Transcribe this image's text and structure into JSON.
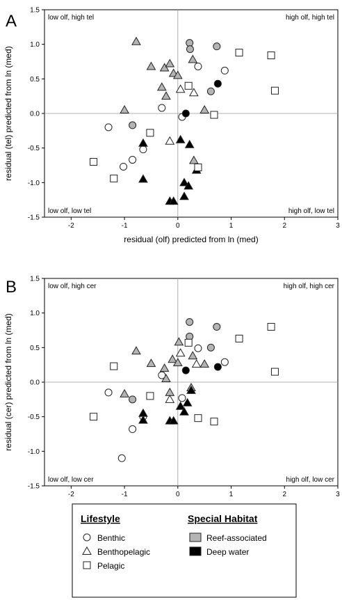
{
  "chart_data": [
    {
      "panel": "A",
      "type": "scatter",
      "xlabel": "residual (olf) predicted from ln (med)",
      "ylabel": "residual (tel) predicted from ln (med)",
      "xlim": [
        -2.5,
        3
      ],
      "ylim": [
        -1.5,
        1.5
      ],
      "xticks": [
        -2,
        -1,
        0,
        1,
        2,
        3
      ],
      "yticks": [
        -1.5,
        -1.0,
        -0.5,
        0.0,
        0.5,
        1.0,
        1.5
      ],
      "ytick_labels": [
        "-1.5",
        "-1.0",
        "-0.5",
        "0.0",
        "0.5",
        "1.0",
        "1.5"
      ],
      "reference_lines": {
        "x": 0,
        "y": 0
      },
      "corner_labels": {
        "top_left": "low olf, high tel",
        "top_right": "high olf, high tel",
        "bottom_left": "low olf, low tel",
        "bottom_right": "high olf, low tel"
      },
      "points": [
        {
          "x": 0.22,
          "y": 1.02,
          "shape": "circle",
          "fill": "reef"
        },
        {
          "x": 0.23,
          "y": 0.93,
          "shape": "circle",
          "fill": "reef"
        },
        {
          "x": 0.73,
          "y": 0.97,
          "shape": "circle",
          "fill": "reef"
        },
        {
          "x": 0.62,
          "y": 0.32,
          "shape": "circle",
          "fill": "reef"
        },
        {
          "x": -0.85,
          "y": -0.17,
          "shape": "circle",
          "fill": "reef"
        },
        {
          "x": 0.38,
          "y": 0.68,
          "shape": "circle",
          "fill": "none"
        },
        {
          "x": 0.88,
          "y": 0.62,
          "shape": "circle",
          "fill": "none"
        },
        {
          "x": -0.3,
          "y": 0.08,
          "shape": "circle",
          "fill": "none"
        },
        {
          "x": 0.08,
          "y": -0.05,
          "shape": "circle",
          "fill": "none"
        },
        {
          "x": -1.3,
          "y": -0.2,
          "shape": "circle",
          "fill": "none"
        },
        {
          "x": -0.65,
          "y": -0.52,
          "shape": "circle",
          "fill": "none"
        },
        {
          "x": -0.85,
          "y": -0.67,
          "shape": "circle",
          "fill": "none"
        },
        {
          "x": -1.02,
          "y": -0.77,
          "shape": "circle",
          "fill": "none"
        },
        {
          "x": 0.75,
          "y": 0.43,
          "shape": "circle",
          "fill": "deep"
        },
        {
          "x": 0.15,
          "y": 0.0,
          "shape": "circle",
          "fill": "deep"
        },
        {
          "x": -0.78,
          "y": 1.04,
          "shape": "triangle",
          "fill": "reef"
        },
        {
          "x": -0.5,
          "y": 0.68,
          "shape": "triangle",
          "fill": "reef"
        },
        {
          "x": -0.25,
          "y": 0.66,
          "shape": "triangle",
          "fill": "reef"
        },
        {
          "x": -0.15,
          "y": 0.72,
          "shape": "triangle",
          "fill": "reef"
        },
        {
          "x": -0.08,
          "y": 0.58,
          "shape": "triangle",
          "fill": "reef"
        },
        {
          "x": 0.0,
          "y": 0.55,
          "shape": "triangle",
          "fill": "reef"
        },
        {
          "x": 0.28,
          "y": 0.78,
          "shape": "triangle",
          "fill": "reef"
        },
        {
          "x": -0.3,
          "y": 0.38,
          "shape": "triangle",
          "fill": "reef"
        },
        {
          "x": -0.22,
          "y": 0.25,
          "shape": "triangle",
          "fill": "reef"
        },
        {
          "x": -1.0,
          "y": 0.05,
          "shape": "triangle",
          "fill": "reef"
        },
        {
          "x": 0.5,
          "y": 0.05,
          "shape": "triangle",
          "fill": "reef"
        },
        {
          "x": 0.3,
          "y": -0.68,
          "shape": "triangle",
          "fill": "reef"
        },
        {
          "x": 0.05,
          "y": 0.35,
          "shape": "triangle",
          "fill": "none"
        },
        {
          "x": 0.3,
          "y": 0.3,
          "shape": "triangle",
          "fill": "none"
        },
        {
          "x": -0.15,
          "y": -0.4,
          "shape": "triangle",
          "fill": "none"
        },
        {
          "x": -0.65,
          "y": -0.43,
          "shape": "triangle",
          "fill": "deep"
        },
        {
          "x": 0.05,
          "y": -0.38,
          "shape": "triangle",
          "fill": "deep"
        },
        {
          "x": 0.22,
          "y": -0.45,
          "shape": "triangle",
          "fill": "deep"
        },
        {
          "x": -0.65,
          "y": -0.95,
          "shape": "triangle",
          "fill": "deep"
        },
        {
          "x": 0.12,
          "y": -1.0,
          "shape": "triangle",
          "fill": "deep"
        },
        {
          "x": 0.2,
          "y": -1.05,
          "shape": "triangle",
          "fill": "deep"
        },
        {
          "x": 0.35,
          "y": -0.82,
          "shape": "triangle",
          "fill": "deep"
        },
        {
          "x": 0.12,
          "y": -1.2,
          "shape": "triangle",
          "fill": "deep"
        },
        {
          "x": -0.15,
          "y": -1.27,
          "shape": "triangle",
          "fill": "deep"
        },
        {
          "x": -0.08,
          "y": -1.27,
          "shape": "triangle",
          "fill": "deep"
        },
        {
          "x": 0.2,
          "y": 0.4,
          "shape": "square",
          "fill": "none"
        },
        {
          "x": 1.15,
          "y": 0.88,
          "shape": "square",
          "fill": "none"
        },
        {
          "x": 1.75,
          "y": 0.84,
          "shape": "square",
          "fill": "none"
        },
        {
          "x": 1.82,
          "y": 0.33,
          "shape": "square",
          "fill": "none"
        },
        {
          "x": 0.68,
          "y": -0.02,
          "shape": "square",
          "fill": "none"
        },
        {
          "x": -0.52,
          "y": -0.28,
          "shape": "square",
          "fill": "none"
        },
        {
          "x": -1.58,
          "y": -0.7,
          "shape": "square",
          "fill": "none"
        },
        {
          "x": -1.2,
          "y": -0.94,
          "shape": "square",
          "fill": "none"
        },
        {
          "x": 0.38,
          "y": -0.78,
          "shape": "square",
          "fill": "none"
        }
      ]
    },
    {
      "panel": "B",
      "type": "scatter",
      "xlabel": "residual (olf) predicted from ln (med)",
      "ylabel": "residual (cer) predicted from ln (med)",
      "xlim": [
        -2.5,
        3
      ],
      "ylim": [
        -1.5,
        1.5
      ],
      "xticks": [
        -2,
        -1,
        0,
        1,
        2,
        3
      ],
      "yticks": [
        -1.5,
        -1.0,
        -0.5,
        0.0,
        0.5,
        1.0,
        1.5
      ],
      "ytick_labels": [
        "-1.5",
        "-1.0",
        "-0.5",
        "0.0",
        "0.5",
        "1.0",
        "1.5"
      ],
      "reference_lines": {
        "x": 0,
        "y": 0
      },
      "corner_labels": {
        "top_left": "low olf, high cer",
        "top_right": "high olf, high cer",
        "bottom_left": "low olf, low cer",
        "bottom_right": "high olf, low cer"
      },
      "points": [
        {
          "x": 0.22,
          "y": 0.87,
          "shape": "circle",
          "fill": "reef"
        },
        {
          "x": 0.22,
          "y": 0.66,
          "shape": "circle",
          "fill": "reef"
        },
        {
          "x": 0.73,
          "y": 0.8,
          "shape": "circle",
          "fill": "reef"
        },
        {
          "x": 0.62,
          "y": 0.5,
          "shape": "circle",
          "fill": "reef"
        },
        {
          "x": -0.85,
          "y": -0.25,
          "shape": "circle",
          "fill": "reef"
        },
        {
          "x": 0.38,
          "y": 0.49,
          "shape": "circle",
          "fill": "none"
        },
        {
          "x": 0.88,
          "y": 0.29,
          "shape": "circle",
          "fill": "none"
        },
        {
          "x": -0.3,
          "y": 0.1,
          "shape": "circle",
          "fill": "none"
        },
        {
          "x": 0.08,
          "y": -0.23,
          "shape": "circle",
          "fill": "none"
        },
        {
          "x": -1.3,
          "y": -0.15,
          "shape": "circle",
          "fill": "none"
        },
        {
          "x": -0.65,
          "y": -0.5,
          "shape": "circle",
          "fill": "none"
        },
        {
          "x": -0.85,
          "y": -0.68,
          "shape": "circle",
          "fill": "none"
        },
        {
          "x": -1.05,
          "y": -1.1,
          "shape": "circle",
          "fill": "none"
        },
        {
          "x": 0.75,
          "y": 0.22,
          "shape": "circle",
          "fill": "deep"
        },
        {
          "x": 0.15,
          "y": 0.17,
          "shape": "circle",
          "fill": "deep"
        },
        {
          "x": -0.78,
          "y": 0.45,
          "shape": "triangle",
          "fill": "reef"
        },
        {
          "x": -0.5,
          "y": 0.27,
          "shape": "triangle",
          "fill": "reef"
        },
        {
          "x": -0.25,
          "y": 0.2,
          "shape": "triangle",
          "fill": "reef"
        },
        {
          "x": -0.1,
          "y": 0.33,
          "shape": "triangle",
          "fill": "reef"
        },
        {
          "x": 0.02,
          "y": 0.58,
          "shape": "triangle",
          "fill": "reef"
        },
        {
          "x": 0.28,
          "y": 0.38,
          "shape": "triangle",
          "fill": "reef"
        },
        {
          "x": 0.5,
          "y": 0.26,
          "shape": "triangle",
          "fill": "reef"
        },
        {
          "x": 0.0,
          "y": 0.28,
          "shape": "triangle",
          "fill": "reef"
        },
        {
          "x": -0.22,
          "y": 0.05,
          "shape": "triangle",
          "fill": "reef"
        },
        {
          "x": -1.0,
          "y": -0.17,
          "shape": "triangle",
          "fill": "reef"
        },
        {
          "x": -0.15,
          "y": -0.15,
          "shape": "triangle",
          "fill": "reef"
        },
        {
          "x": 0.25,
          "y": -0.08,
          "shape": "triangle",
          "fill": "reef"
        },
        {
          "x": 0.05,
          "y": 0.42,
          "shape": "triangle",
          "fill": "none"
        },
        {
          "x": 0.35,
          "y": 0.26,
          "shape": "triangle",
          "fill": "none"
        },
        {
          "x": -0.15,
          "y": -0.25,
          "shape": "triangle",
          "fill": "none"
        },
        {
          "x": -0.65,
          "y": -0.45,
          "shape": "triangle",
          "fill": "deep"
        },
        {
          "x": -0.65,
          "y": -0.55,
          "shape": "triangle",
          "fill": "deep"
        },
        {
          "x": 0.05,
          "y": -0.35,
          "shape": "triangle",
          "fill": "deep"
        },
        {
          "x": 0.18,
          "y": -0.3,
          "shape": "triangle",
          "fill": "deep"
        },
        {
          "x": 0.25,
          "y": -0.12,
          "shape": "triangle",
          "fill": "deep"
        },
        {
          "x": 0.12,
          "y": -0.43,
          "shape": "triangle",
          "fill": "deep"
        },
        {
          "x": -0.15,
          "y": -0.56,
          "shape": "triangle",
          "fill": "deep"
        },
        {
          "x": -0.08,
          "y": -0.56,
          "shape": "triangle",
          "fill": "deep"
        },
        {
          "x": 0.2,
          "y": 0.57,
          "shape": "square",
          "fill": "none"
        },
        {
          "x": 1.15,
          "y": 0.63,
          "shape": "square",
          "fill": "none"
        },
        {
          "x": 1.75,
          "y": 0.8,
          "shape": "square",
          "fill": "none"
        },
        {
          "x": 1.82,
          "y": 0.15,
          "shape": "square",
          "fill": "none"
        },
        {
          "x": -1.2,
          "y": 0.23,
          "shape": "square",
          "fill": "none"
        },
        {
          "x": -0.52,
          "y": -0.2,
          "shape": "square",
          "fill": "none"
        },
        {
          "x": -1.58,
          "y": -0.5,
          "shape": "square",
          "fill": "none"
        },
        {
          "x": 0.38,
          "y": -0.52,
          "shape": "square",
          "fill": "none"
        },
        {
          "x": 0.68,
          "y": -0.57,
          "shape": "square",
          "fill": "none"
        }
      ]
    }
  ],
  "fills": {
    "none": "#ffffff",
    "reef": "#b4b4b4",
    "deep": "#000000"
  },
  "legend": {
    "lifestyle_title": "Lifestyle",
    "lifestyle_items": [
      {
        "label": "Benthic",
        "shape": "circle"
      },
      {
        "label": "Benthopelagic",
        "shape": "triangle"
      },
      {
        "label": "Pelagic",
        "shape": "square"
      }
    ],
    "habitat_title": "Special Habitat",
    "habitat_items": [
      {
        "label": "Reef-associated",
        "fill": "reef"
      },
      {
        "label": "Deep water",
        "fill": "deep"
      }
    ]
  }
}
